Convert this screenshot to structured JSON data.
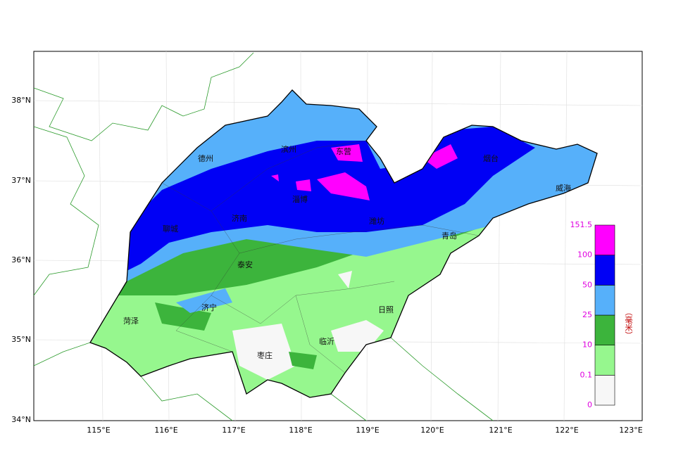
{
  "map": {
    "lat_labels": [
      "38°N",
      "37°N",
      "36°N",
      "35°N",
      "34°N"
    ],
    "lon_labels": [
      "115°E",
      "116°E",
      "117°E",
      "118°E",
      "119°E",
      "120°E",
      "121°E",
      "122°E",
      "123°E"
    ],
    "cities": [
      "德州",
      "滨州",
      "东营",
      "烟台",
      "威海",
      "聊城",
      "济南",
      "淄博",
      "潍坊",
      "青岛",
      "泰安",
      "菏泽",
      "济宁",
      "日照",
      "临沂",
      "枣庄"
    ],
    "legend": {
      "unit": "（毫米）",
      "levels": [
        0,
        0.1,
        10,
        25,
        50,
        100,
        151.5
      ],
      "colors": [
        "#f7f7f7",
        "#96f78e",
        "#3cb43c",
        "#56b0fa",
        "#0000f5",
        "#ff00ff"
      ]
    }
  }
}
